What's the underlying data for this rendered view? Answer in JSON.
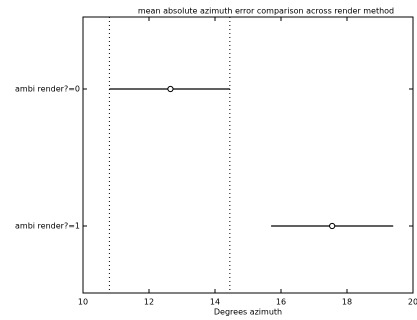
{
  "chart_data": {
    "type": "errorbar",
    "title": "mean absolute azimuth error comparison across render method",
    "x_label": "Degrees azimuth",
    "categories": [
      "ambi render?=0",
      "ambi render?=1"
    ],
    "series": [
      {
        "color": "#000000",
        "values": [
          12.65,
          17.55
        ],
        "lower": [
          10.8,
          15.7
        ],
        "upper": [
          14.45,
          19.4
        ]
      }
    ],
    "reference_group": 0,
    "xlim": [
      10,
      20
    ],
    "xticks": [
      10,
      12,
      14,
      16,
      18,
      20
    ]
  }
}
